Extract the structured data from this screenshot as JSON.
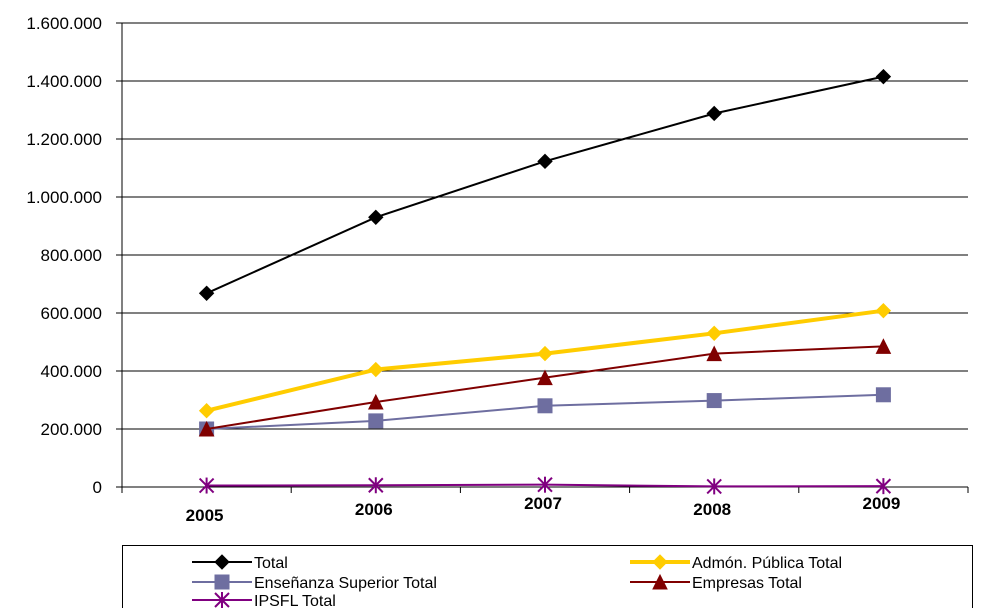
{
  "chart_data": {
    "type": "line",
    "title": "",
    "xlabel": "",
    "ylabel": "",
    "categories": [
      "2005",
      "2006",
      "2007",
      "2008",
      "2009"
    ],
    "ylim": [
      0,
      1600000
    ],
    "y_ticks": [
      0,
      200000,
      400000,
      600000,
      800000,
      1000000,
      1200000,
      1400000,
      1600000
    ],
    "y_tick_labels": [
      "0",
      "200.000",
      "400.000",
      "600.000",
      "800.000",
      "1.000.000",
      "1.200.000",
      "1.400.000",
      "1.600.000"
    ],
    "grid": true,
    "legend_position": "bottom",
    "series": [
      {
        "name": "Total",
        "values": [
          668000,
          930000,
          1123000,
          1288000,
          1415000
        ],
        "color": "#000000",
        "marker": "diamond",
        "line_width": "normal"
      },
      {
        "name": "Admón. Pública Total",
        "values": [
          263000,
          405000,
          460000,
          530000,
          608000
        ],
        "color": "#FFCC00",
        "marker": "diamond",
        "line_width": "thick"
      },
      {
        "name": "Enseñanza Superior Total",
        "values": [
          200000,
          228000,
          280000,
          298000,
          318000
        ],
        "color": "#6E6EA0",
        "marker": "square",
        "line_width": "normal"
      },
      {
        "name": "Empresas Total",
        "values": [
          200000,
          293000,
          377000,
          460000,
          485000
        ],
        "color": "#800000",
        "marker": "triangle",
        "line_width": "normal"
      },
      {
        "name": "IPSFL Total",
        "values": [
          5000,
          6000,
          8000,
          2000,
          3000
        ],
        "color": "#800080",
        "marker": "star",
        "line_width": "normal"
      }
    ]
  }
}
